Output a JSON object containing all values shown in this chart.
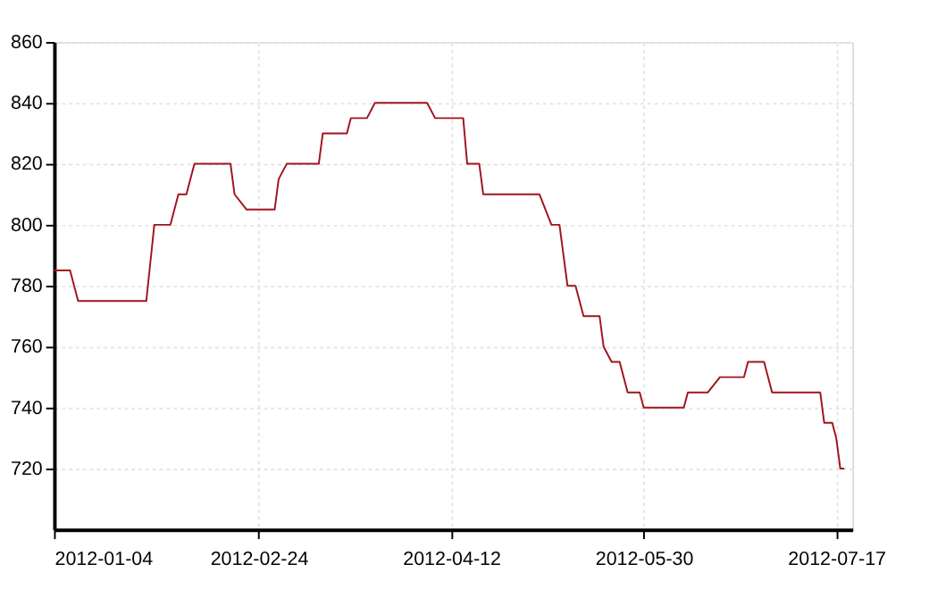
{
  "chart_data": {
    "type": "line",
    "x": [
      "2012-01-04",
      "2012-01-08",
      "2012-01-10",
      "2012-01-27",
      "2012-01-29",
      "2012-02-02",
      "2012-02-04",
      "2012-02-06",
      "2012-02-08",
      "2012-02-17",
      "2012-02-18",
      "2012-02-21",
      "2012-02-28",
      "2012-02-29",
      "2012-03-02",
      "2012-03-10",
      "2012-03-11",
      "2012-03-17",
      "2012-03-18",
      "2012-03-22",
      "2012-03-24",
      "2012-04-06",
      "2012-04-08",
      "2012-04-15",
      "2012-04-16",
      "2012-04-19",
      "2012-04-20",
      "2012-05-04",
      "2012-05-07",
      "2012-05-09",
      "2012-05-11",
      "2012-05-13",
      "2012-05-15",
      "2012-05-19",
      "2012-05-20",
      "2012-05-22",
      "2012-05-24",
      "2012-05-26",
      "2012-05-29",
      "2012-05-30",
      "2012-06-09",
      "2012-06-10",
      "2012-06-15",
      "2012-06-18",
      "2012-06-24",
      "2012-06-25",
      "2012-06-29",
      "2012-07-01",
      "2012-07-13",
      "2012-07-14",
      "2012-07-16",
      "2012-07-17",
      "2012-07-18",
      "2012-07-19"
    ],
    "series": [
      {
        "color": "#a0141e",
        "values": [
          785,
          785,
          775,
          775,
          800,
          800,
          810,
          810,
          820,
          820,
          810,
          805,
          805,
          815,
          820,
          820,
          830,
          830,
          835,
          835,
          840,
          840,
          835,
          835,
          820,
          820,
          810,
          810,
          800,
          800,
          780,
          780,
          770,
          770,
          760,
          755,
          755,
          745,
          745,
          740,
          740,
          745,
          745,
          750,
          750,
          755,
          755,
          745,
          745,
          735,
          735,
          730,
          720,
          720
        ]
      }
    ],
    "xlim": [
      "2012-01-04",
      "2012-07-21"
    ],
    "xticks": [
      "2012-01-04",
      "2012-02-24",
      "2012-04-12",
      "2012-05-30",
      "2012-07-17"
    ],
    "ylim": [
      700,
      860
    ],
    "yticks": [
      720,
      740,
      760,
      780,
      800,
      820,
      840,
      860
    ],
    "grid": true,
    "legend": false,
    "marker": "none",
    "line_style": "solid"
  }
}
